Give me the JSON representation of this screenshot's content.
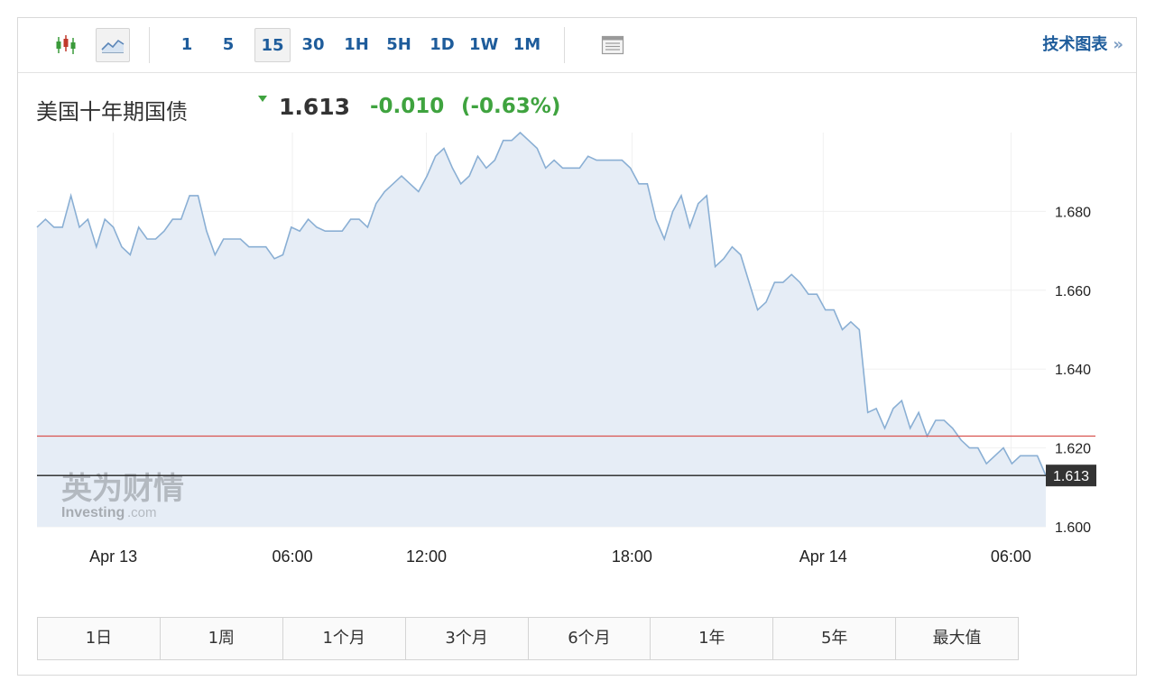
{
  "toolbar": {
    "timeframes": [
      "1",
      "5",
      "15",
      "30",
      "1H",
      "5H",
      "1D",
      "1W",
      "1M"
    ],
    "active_timeframe": "15",
    "candlestick_icon": "candlestick-icon",
    "line_chart_icon": "line-chart-icon",
    "table_icon": "table-icon",
    "tech_chart_label": "技术图表",
    "tech_chart_arrow": "»"
  },
  "quote": {
    "name": "美国十年期国债",
    "last": "1.613",
    "change": "-0.010",
    "change_pct": "(-0.63%)",
    "change_color": "#3fa33f"
  },
  "watermark": {
    "cn": "英为财情",
    "en": "Investing",
    "en_suffix": ".com"
  },
  "ranges": [
    "1日",
    "1周",
    "1个月",
    "3个月",
    "6个月",
    "1年",
    "5年",
    "最大值"
  ],
  "chart_data": {
    "type": "area",
    "title": "",
    "xlabel": "",
    "ylabel": "",
    "x_tick_labels": [
      "Apr 13",
      "06:00",
      "12:00",
      "18:00",
      "Apr 14",
      "06:00"
    ],
    "y_tick_labels": [
      "1.680",
      "1.660",
      "1.640",
      "1.620",
      "1.600"
    ],
    "ylim": [
      1.6,
      1.7
    ],
    "line_color": "#8aafd4",
    "fill_color": "#e6edf6",
    "reference_line": {
      "value": 1.623,
      "color": "#d9534f"
    },
    "current_line": {
      "value": 1.613,
      "label": "1.613",
      "color": "#222222"
    },
    "series": [
      {
        "values": [
          1.676,
          1.678,
          1.676,
          1.676,
          1.684,
          1.676,
          1.678,
          1.671,
          1.678,
          1.676,
          1.671,
          1.669,
          1.676,
          1.673,
          1.673,
          1.675,
          1.678,
          1.678,
          1.684,
          1.684,
          1.675,
          1.669,
          1.673,
          1.673,
          1.673,
          1.671,
          1.671,
          1.671,
          1.668,
          1.669,
          1.676,
          1.675,
          1.678,
          1.676,
          1.675,
          1.675,
          1.675,
          1.678,
          1.678,
          1.676,
          1.682,
          1.685,
          1.687,
          1.689,
          1.687,
          1.685,
          1.689,
          1.694,
          1.696,
          1.691,
          1.687,
          1.689,
          1.694,
          1.691,
          1.693,
          1.698,
          1.698,
          1.7,
          1.698,
          1.696,
          1.691,
          1.693,
          1.691,
          1.691,
          1.691,
          1.694,
          1.693,
          1.693,
          1.693,
          1.693,
          1.691,
          1.687,
          1.687,
          1.678,
          1.673,
          1.68,
          1.684,
          1.676,
          1.682,
          1.684,
          1.666,
          1.668,
          1.671,
          1.669,
          1.662,
          1.655,
          1.657,
          1.662,
          1.662,
          1.664,
          1.662,
          1.659,
          1.659,
          1.655,
          1.655,
          1.65,
          1.652,
          1.65,
          1.629,
          1.63,
          1.625,
          1.63,
          1.632,
          1.625,
          1.629,
          1.623,
          1.627,
          1.627,
          1.625,
          1.622,
          1.62,
          1.62,
          1.616,
          1.618,
          1.62,
          1.616,
          1.618,
          1.618,
          1.618,
          1.613
        ]
      }
    ]
  }
}
